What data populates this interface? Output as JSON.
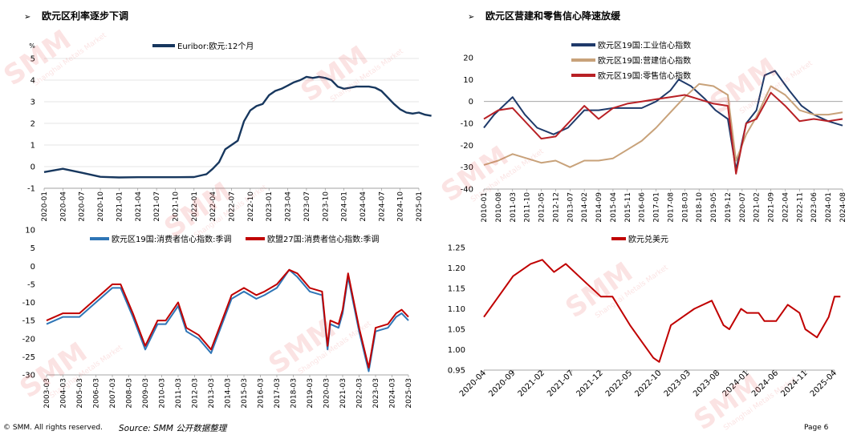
{
  "left_title": "欧元区利率逐步下调",
  "right_title": "欧元区营建和零售信心降速放缓",
  "arrow_glyph": "➢",
  "watermark": {
    "logo": "SMM",
    "tagline": "Shanghai Metals Market"
  },
  "footer": {
    "copyright": "© SMM. All rights reserved.",
    "source": "Source: SMM   公开数据整理",
    "page": "Page 6"
  },
  "chart_data": [
    {
      "type": "line",
      "ylabel": "%",
      "ylim": [
        -1,
        5
      ],
      "yticks": [
        "-1",
        "0",
        "1",
        "2",
        "3",
        "4",
        "5"
      ],
      "x_ticks": [
        "2020-01",
        "2020-04",
        "2020-07",
        "2020-10",
        "2021-01",
        "2021-04",
        "2021-07",
        "2021-10",
        "2022-01",
        "2022-04",
        "2022-07",
        "2022-10",
        "2023-01",
        "2023-04",
        "2023-07",
        "2023-10",
        "2024-01",
        "2024-04",
        "2024-07",
        "2024-10",
        "2025-01"
      ],
      "legend_position": "top-center",
      "series": [
        {
          "name": "Euribor:欧元:12个月",
          "color": "#17375e",
          "x": [
            "2020-01",
            "2020-04",
            "2020-07",
            "2020-10",
            "2021-01",
            "2021-04",
            "2021-07",
            "2021-10",
            "2022-01",
            "2022-03",
            "2022-04",
            "2022-05",
            "2022-06",
            "2022-07",
            "2022-08",
            "2022-09",
            "2022-10",
            "2022-11",
            "2022-12",
            "2023-01",
            "2023-02",
            "2023-03",
            "2023-04",
            "2023-05",
            "2023-06",
            "2023-07",
            "2023-08",
            "2023-09",
            "2023-10",
            "2023-11",
            "2023-12",
            "2024-01",
            "2024-02",
            "2024-03",
            "2024-04",
            "2024-05",
            "2024-06",
            "2024-07",
            "2024-08",
            "2024-09",
            "2024-10",
            "2024-11",
            "2024-12",
            "2025-01",
            "2025-02",
            "2025-03"
          ],
          "values": [
            -0.25,
            -0.1,
            -0.28,
            -0.47,
            -0.5,
            -0.49,
            -0.49,
            -0.49,
            -0.48,
            -0.35,
            -0.1,
            0.2,
            0.8,
            1.0,
            1.2,
            2.1,
            2.6,
            2.8,
            2.9,
            3.3,
            3.5,
            3.6,
            3.75,
            3.9,
            4.0,
            4.15,
            4.1,
            4.15,
            4.1,
            4.0,
            3.7,
            3.6,
            3.65,
            3.7,
            3.7,
            3.7,
            3.65,
            3.5,
            3.2,
            2.9,
            2.65,
            2.5,
            2.45,
            2.5,
            2.4,
            2.35
          ]
        }
      ]
    },
    {
      "type": "line",
      "ylim": [
        -40,
        20
      ],
      "yticks": [
        "-40",
        "-30",
        "-20",
        "-10",
        "0",
        "10",
        "20"
      ],
      "x_ticks": [
        "2010-01",
        "2010-08",
        "2011-03",
        "2011-10",
        "2012-05",
        "2012-12",
        "2013-07",
        "2014-02",
        "2014-09",
        "2015-04",
        "2015-11",
        "2016-06",
        "2017-01",
        "2017-08",
        "2018-03",
        "2018-10",
        "2019-05",
        "2019-12",
        "2020-07",
        "2021-02",
        "2021-09",
        "2022-04",
        "2022-11",
        "2023-06",
        "2024-01",
        "2024-08"
      ],
      "legend_position": "top-left",
      "series": [
        {
          "name": "欧元区19国:工业信心指数",
          "color": "#1f3a6a",
          "x": [
            "2010-01",
            "2010-06",
            "2011-03",
            "2011-09",
            "2012-03",
            "2012-11",
            "2013-06",
            "2014-02",
            "2014-09",
            "2015-04",
            "2015-11",
            "2016-06",
            "2017-01",
            "2017-08",
            "2017-12",
            "2018-06",
            "2019-01",
            "2019-06",
            "2019-12",
            "2020-04",
            "2020-09",
            "2021-02",
            "2021-06",
            "2021-11",
            "2022-06",
            "2022-12",
            "2023-06",
            "2024-01",
            "2024-08"
          ],
          "values": [
            -12,
            -6,
            2,
            -6,
            -12,
            -15,
            -12,
            -4,
            -4,
            -3,
            -3,
            -3,
            0,
            5,
            10,
            7,
            1,
            -4,
            -8,
            -31,
            -10,
            -4,
            12,
            14,
            5,
            -2,
            -6,
            -9,
            -11
          ]
        },
        {
          "name": "欧元区19国:营建信心指数",
          "color": "#c8a27a",
          "x": [
            "2010-01",
            "2010-08",
            "2011-03",
            "2011-10",
            "2012-05",
            "2012-12",
            "2013-07",
            "2014-02",
            "2014-09",
            "2015-04",
            "2015-11",
            "2016-06",
            "2017-01",
            "2017-08",
            "2018-03",
            "2018-10",
            "2019-05",
            "2019-12",
            "2020-04",
            "2020-09",
            "2021-02",
            "2021-09",
            "2022-04",
            "2022-11",
            "2023-06",
            "2024-01",
            "2024-08"
          ],
          "values": [
            -29,
            -27,
            -24,
            -26,
            -28,
            -27,
            -30,
            -27,
            -27,
            -26,
            -22,
            -18,
            -12,
            -5,
            2,
            8,
            7,
            3,
            -27,
            -15,
            -7,
            7,
            3,
            -4,
            -6,
            -6,
            -5
          ]
        },
        {
          "name": "欧元区19国:零售信心指数",
          "color": "#b82025",
          "x": [
            "2010-01",
            "2010-08",
            "2011-03",
            "2011-10",
            "2012-05",
            "2012-12",
            "2013-07",
            "2014-02",
            "2014-09",
            "2015-04",
            "2015-11",
            "2016-06",
            "2017-01",
            "2017-08",
            "2018-03",
            "2018-10",
            "2019-05",
            "2019-12",
            "2020-04",
            "2020-09",
            "2021-02",
            "2021-09",
            "2022-04",
            "2022-11",
            "2023-06",
            "2024-01",
            "2024-08"
          ],
          "values": [
            -8,
            -4,
            -3,
            -10,
            -17,
            -16,
            -9,
            -2,
            -8,
            -3,
            -1,
            0,
            1,
            2,
            3,
            1,
            -1,
            -2,
            -33,
            -10,
            -8,
            4,
            -2,
            -9,
            -8,
            -9,
            -8
          ]
        }
      ]
    },
    {
      "type": "line",
      "ylim": [
        -30,
        10
      ],
      "yticks": [
        "-30",
        "-25",
        "-20",
        "-15",
        "-10",
        "-5",
        "0",
        "5",
        "10"
      ],
      "x_ticks": [
        "2003-03",
        "2004-03",
        "2005-03",
        "2006-03",
        "2007-03",
        "2008-03",
        "2009-03",
        "2010-03",
        "2011-03",
        "2012-03",
        "2013-03",
        "2014-03",
        "2015-03",
        "2016-03",
        "2017-03",
        "2018-03",
        "2019-03",
        "2020-03",
        "2021-03",
        "2022-03",
        "2023-03",
        "2024-03",
        "2025-03"
      ],
      "legend_position": "top-center",
      "series": [
        {
          "name": "欧元区19国:消费者信心指数:季调",
          "color": "#2e75b6",
          "x": [
            "2003-03",
            "2004-03",
            "2005-03",
            "2006-03",
            "2007-03",
            "2007-09",
            "2008-06",
            "2009-03",
            "2009-12",
            "2010-06",
            "2011-03",
            "2011-09",
            "2012-06",
            "2013-03",
            "2013-12",
            "2014-06",
            "2015-03",
            "2015-12",
            "2016-06",
            "2017-03",
            "2017-12",
            "2018-06",
            "2019-03",
            "2019-12",
            "2020-04",
            "2020-06",
            "2020-12",
            "2021-03",
            "2021-07",
            "2022-03",
            "2022-10",
            "2023-03",
            "2023-12",
            "2024-06",
            "2024-10",
            "2025-03"
          ],
          "values": [
            -16,
            -14,
            -14,
            -10,
            -6,
            -6,
            -14,
            -23,
            -16,
            -16,
            -11,
            -18,
            -20,
            -24,
            -15,
            -9,
            -7,
            -9,
            -8,
            -6,
            -1,
            -3,
            -7,
            -8,
            -23,
            -16,
            -17,
            -13,
            -3,
            -18,
            -29,
            -18,
            -17,
            -14,
            -13,
            -15
          ]
        },
        {
          "name": "欧盟27国:消费者信心指数:季调",
          "color": "#c00000",
          "x": [
            "2003-03",
            "2004-03",
            "2005-03",
            "2006-03",
            "2007-03",
            "2007-09",
            "2008-06",
            "2009-03",
            "2009-12",
            "2010-06",
            "2011-03",
            "2011-09",
            "2012-06",
            "2013-03",
            "2013-12",
            "2014-06",
            "2015-03",
            "2015-12",
            "2016-06",
            "2017-03",
            "2017-12",
            "2018-06",
            "2019-03",
            "2019-12",
            "2020-04",
            "2020-06",
            "2020-12",
            "2021-03",
            "2021-07",
            "2022-03",
            "2022-10",
            "2023-03",
            "2023-12",
            "2024-06",
            "2024-10",
            "2025-03"
          ],
          "values": [
            -15,
            -13,
            -13,
            -9,
            -5,
            -5,
            -13,
            -22,
            -15,
            -15,
            -10,
            -17,
            -19,
            -23,
            -14,
            -8,
            -6,
            -8,
            -7,
            -5,
            -1,
            -2,
            -6,
            -7,
            -22,
            -15,
            -16,
            -12,
            -2,
            -17,
            -28,
            -17,
            -16,
            -13,
            -12,
            -14
          ]
        }
      ]
    },
    {
      "type": "line",
      "ylim": [
        0.95,
        1.25
      ],
      "yticks": [
        "0.95",
        "1.00",
        "1.05",
        "1.10",
        "1.15",
        "1.20",
        "1.25"
      ],
      "x_ticks": [
        "2020-04",
        "2020-09",
        "2021-02",
        "2021-07",
        "2021-12",
        "2022-05",
        "2022-10",
        "2023-03",
        "2023-08",
        "2024-01",
        "2024-06",
        "2024-11",
        "2025-04"
      ],
      "legend_position": "top-center",
      "series": [
        {
          "name": "欧元兑美元",
          "color": "#c00000",
          "x": [
            "2020-04",
            "2020-06",
            "2020-09",
            "2020-12",
            "2021-02",
            "2021-04",
            "2021-06",
            "2021-09",
            "2021-12",
            "2022-02",
            "2022-05",
            "2022-07",
            "2022-09",
            "2022-10",
            "2022-12",
            "2023-02",
            "2023-04",
            "2023-07",
            "2023-09",
            "2023-10",
            "2023-12",
            "2024-01",
            "2024-03",
            "2024-04",
            "2024-06",
            "2024-08",
            "2024-10",
            "2024-11",
            "2025-01",
            "2025-03",
            "2025-04",
            "2025-05"
          ],
          "values": [
            1.08,
            1.12,
            1.18,
            1.21,
            1.22,
            1.19,
            1.21,
            1.17,
            1.13,
            1.13,
            1.06,
            1.02,
            0.98,
            0.97,
            1.06,
            1.08,
            1.1,
            1.12,
            1.06,
            1.05,
            1.1,
            1.09,
            1.09,
            1.07,
            1.07,
            1.11,
            1.09,
            1.05,
            1.03,
            1.08,
            1.13,
            1.13
          ]
        }
      ]
    }
  ]
}
